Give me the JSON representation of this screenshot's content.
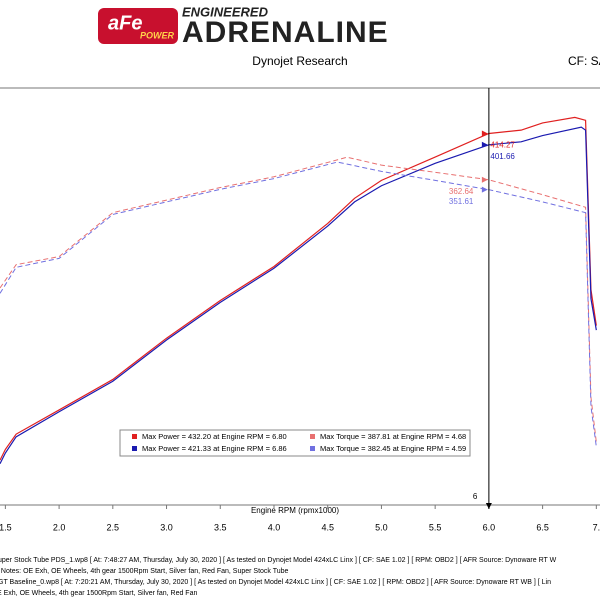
{
  "header": {
    "brand": "aFe",
    "brand_sub": "POWER",
    "tagline_top": "ENGINEERED",
    "tagline_main": "ADRENALINE"
  },
  "chart_data": {
    "type": "line",
    "title": "Dynojet Research",
    "cf_label": "CF: SA",
    "x_label": "Engine RPM (rpmx1000)",
    "xlim": [
      1.45,
      7.05
    ],
    "xticks": [
      1.5,
      {
        "value": 2,
        "label": "2.0"
      },
      2.5,
      {
        "value": 3,
        "label": "3.0"
      },
      3.5,
      {
        "value": 4,
        "label": "4.0"
      },
      4.5,
      {
        "value": 5,
        "label": "5.0"
      },
      5.5,
      {
        "value": 6,
        "label": "6.0"
      },
      6.5,
      {
        "value": 7,
        "label": "7."
      }
    ],
    "ylim": [
      0,
      465
    ],
    "cursor": {
      "x": 6,
      "label": "6"
    },
    "series": [
      {
        "name": "Max Power = 432.20 at Engine RPM = 6.80",
        "color": "#e02020",
        "dashed": false,
        "x": [
          1.45,
          1.5,
          1.6,
          2.0,
          2.5,
          3.0,
          3.5,
          4.0,
          4.5,
          4.75,
          5.0,
          5.5,
          6.0,
          6.3,
          6.5,
          6.8,
          6.9,
          6.95,
          7.0
        ],
        "values": [
          50,
          62,
          79,
          106,
          140,
          186,
          228,
          266,
          314,
          342,
          362,
          388,
          414.27,
          418,
          426,
          432.2,
          429,
          240,
          200
        ]
      },
      {
        "name": "Max Power = 421.33 at Engine RPM = 6.86",
        "color": "#1a1ab0",
        "dashed": false,
        "x": [
          1.45,
          1.5,
          1.6,
          2.0,
          2.5,
          3.0,
          3.5,
          4.0,
          4.5,
          4.75,
          5.0,
          5.5,
          6.0,
          6.3,
          6.5,
          6.86,
          6.9,
          6.95,
          7.0
        ],
        "values": [
          46,
          58,
          76,
          104,
          138,
          184,
          226,
          264,
          311,
          338,
          356,
          381,
          401.66,
          405,
          412,
          421.33,
          418,
          230,
          195
        ]
      },
      {
        "name": "Max Torque = 387.81 at Engine RPM = 4.68",
        "color": "#e87070",
        "dashed": true,
        "x": [
          1.45,
          1.6,
          2.0,
          2.5,
          3.0,
          3.5,
          4.0,
          4.5,
          4.68,
          5.0,
          5.5,
          6.0,
          6.5,
          6.9,
          6.95,
          7.0
        ],
        "values": [
          242,
          268,
          277,
          326,
          340,
          354,
          366,
          382,
          387.81,
          379,
          371,
          362.64,
          346,
          332,
          120,
          70
        ]
      },
      {
        "name": "Max Torque = 382.45 at Engine RPM = 4.59",
        "color": "#7070e0",
        "dashed": true,
        "x": [
          1.45,
          1.6,
          2.0,
          2.5,
          3.0,
          3.5,
          4.0,
          4.59,
          5.0,
          5.5,
          6.0,
          6.5,
          6.9,
          6.95,
          7.0
        ],
        "values": [
          236,
          265,
          275,
          324,
          338,
          352,
          364,
          382.45,
          372,
          362,
          351.61,
          338,
          326,
          110,
          65
        ]
      }
    ],
    "annotations": [
      {
        "x": 6,
        "y": 414.27,
        "color": "#e02020"
      },
      {
        "x": 6,
        "y": 401.66,
        "color": "#1a1ab0"
      },
      {
        "x": 6,
        "y": 362.64,
        "color": "#e87070"
      },
      {
        "x": 6,
        "y": 351.61,
        "color": "#7070e0"
      }
    ]
  },
  "footer_lines": [
    "uper Stock Tube PDS_1.wp8 [ At: 7:48:27 AM, Thursday, July 30, 2020 ] [ As tested on Dynojet Model 424xLC Linx ] [ CF: SAE 1.02 ] [ RPM: OBD2 ] [ AFR Source: Dynoware RT W",
    "] Notes: OE Exh, OE Wheels, 4th gear 1500Rpm Start, Silver fan, Red Fan, Super Stock Tube",
    "GT Baseline_0.wp8 [ At: 7:20:21 AM, Thursday, July 30, 2020 ] [ As tested on Dynojet Model 424xLC Linx ] [ CF: SAE 1.02 ] [ RPM: OBD2 ] [ AFR Source: Dynoware RT WB ] [ Lin",
    "E Exh, OE Wheels, 4th gear 1500Rpm Start, Silver fan, Red Fan"
  ]
}
